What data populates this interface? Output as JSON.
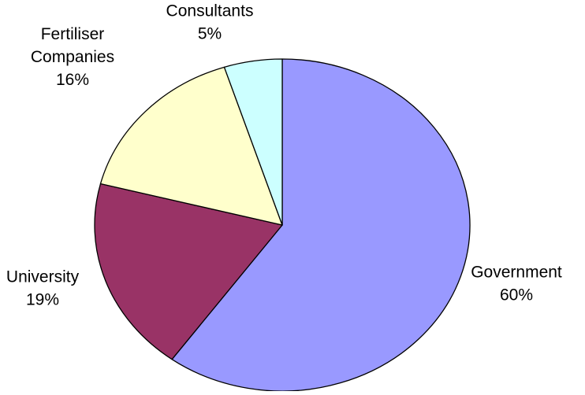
{
  "chart_data": {
    "type": "pie",
    "title": "",
    "slices": [
      {
        "label": "Government",
        "value": 60,
        "value_label": "60%",
        "color": "#9999FF"
      },
      {
        "label": "University",
        "value": 19,
        "value_label": "19%",
        "color": "#993366"
      },
      {
        "label": "Fertiliser Companies",
        "value": 16,
        "value_label": "16%",
        "color": "#FFFFCC"
      },
      {
        "label": "Consultants",
        "value": 5,
        "value_label": "5%",
        "color": "#CCFFFF"
      }
    ],
    "start_angle_deg": 0,
    "direction": "clockwise",
    "legend": "none",
    "labels": "outside, category name with percentage"
  }
}
